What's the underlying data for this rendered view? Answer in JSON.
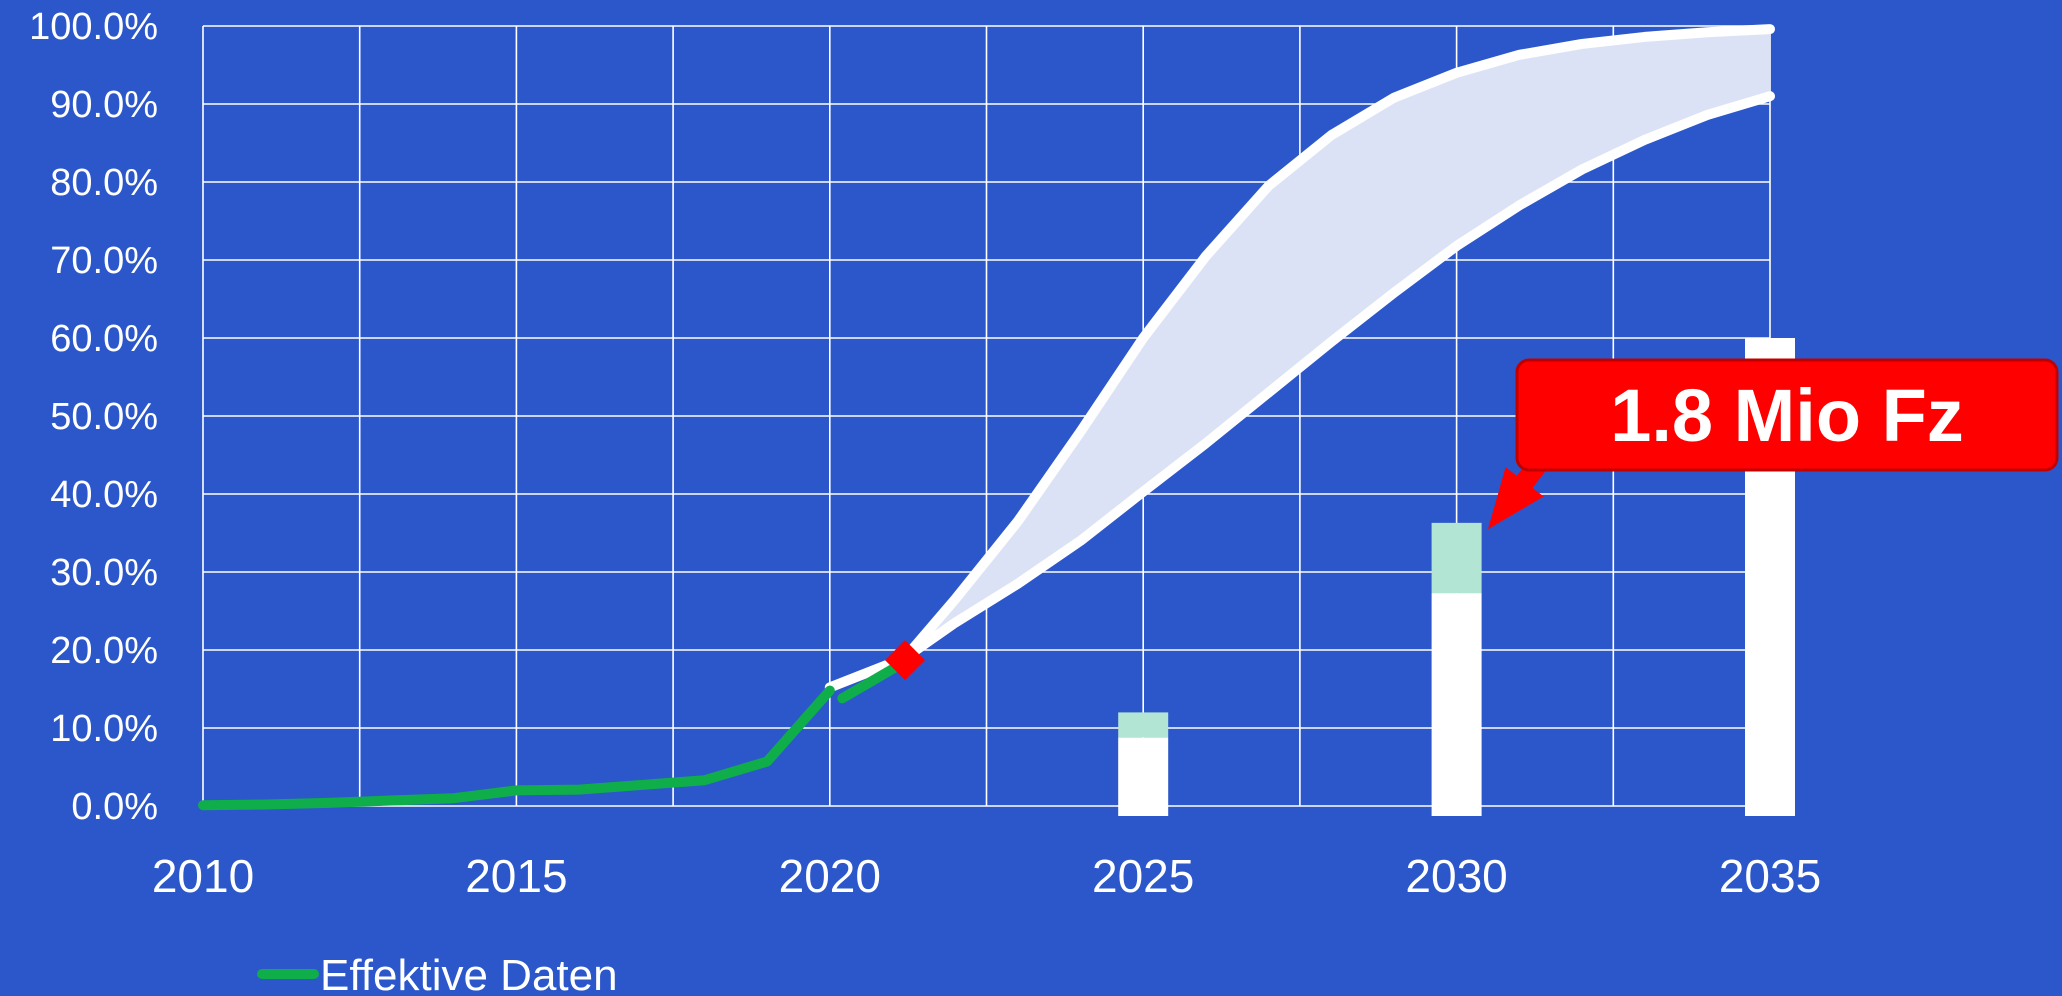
{
  "chart_data": {
    "type": "line",
    "x_ticks": [
      "2010",
      "2015",
      "2020",
      "2025",
      "2030",
      "2035"
    ],
    "y_ticks": [
      "0.0%",
      "10.0%",
      "20.0%",
      "30.0%",
      "40.0%",
      "50.0%",
      "60.0%",
      "70.0%",
      "80.0%",
      "90.0%",
      "100.0%"
    ],
    "xlim": [
      2010,
      2035
    ],
    "ylim": [
      0,
      100
    ],
    "grid": true,
    "legend_position": "bottom-left",
    "series": [
      {
        "name": "Effektive Daten",
        "type": "line",
        "color": "#0fae4b",
        "x": [
          2010,
          2011,
          2012,
          2013,
          2014,
          2015,
          2016,
          2017,
          2018,
          2019,
          2020
        ],
        "values": [
          0.1,
          0.2,
          0.4,
          0.7,
          1.0,
          2.0,
          2.1,
          2.7,
          3.3,
          5.7,
          14.8
        ]
      },
      {
        "type": "line",
        "color": "#0fae4b",
        "x": [
          2020.2,
          2021.2
        ],
        "values": [
          13.8,
          18.5
        ]
      },
      {
        "type": "line",
        "color": "#ffffff",
        "x": [
          2020,
          2021.2,
          2022,
          2023,
          2024,
          2025,
          2026,
          2027,
          2028,
          2029,
          2030,
          2031,
          2032,
          2033,
          2034,
          2035
        ],
        "values": [
          15.2,
          19.0,
          26.5,
          36.5,
          48.0,
          60.0,
          70.5,
          79.5,
          86.0,
          90.8,
          94.0,
          96.3,
          97.7,
          98.6,
          99.2,
          99.6
        ]
      },
      {
        "type": "line",
        "color": "#ffffff",
        "x": [
          2021.2,
          2022,
          2023,
          2024,
          2025,
          2026,
          2027,
          2028,
          2029,
          2030,
          2031,
          2032,
          2033,
          2034,
          2035
        ],
        "values": [
          19.0,
          23.5,
          28.5,
          34.0,
          40.3,
          46.5,
          53.0,
          59.5,
          65.8,
          71.8,
          77.0,
          81.6,
          85.4,
          88.6,
          91.0
        ]
      },
      {
        "type": "bar",
        "colors": [
          "#ffffff",
          "#b2e5d3"
        ],
        "x": [
          2025,
          2030,
          2035
        ],
        "base": [
          8.8,
          27.3,
          60.0
        ],
        "top": [
          12.0,
          36.3,
          60.0
        ]
      }
    ],
    "marker": {
      "x": 2021.2,
      "value": 18.7,
      "color": "#ff0000",
      "shape": "diamond"
    },
    "annotation": {
      "text": "1.8 Mio Fz",
      "target_x": 2030.5,
      "target_value": 36.5,
      "color": "#ff0000"
    }
  }
}
